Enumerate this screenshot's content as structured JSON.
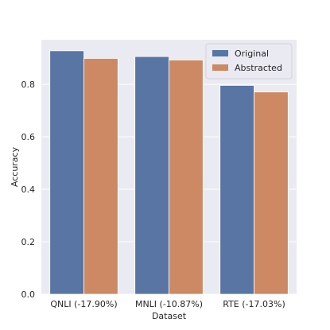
{
  "chart_data": {
    "type": "bar",
    "title": "",
    "xlabel": "Dataset",
    "ylabel": "Accuracy",
    "categories": [
      "QNLI (-17.90%)",
      "MNLI (-10.87%)",
      "RTE (-17.03%)"
    ],
    "series": [
      {
        "name": "Original",
        "values": [
          0.928,
          0.906,
          0.796
        ],
        "color": "#5875a4"
      },
      {
        "name": "Abstracted",
        "values": [
          0.899,
          0.893,
          0.771
        ],
        "color": "#cc8963"
      }
    ],
    "ylim": [
      0,
      0.97
    ],
    "yticks": [
      "0.0",
      "0.2",
      "0.4",
      "0.6",
      "0.8"
    ],
    "grid": true,
    "legend_position": "top-right",
    "plot_background": "#eaeaf2"
  }
}
